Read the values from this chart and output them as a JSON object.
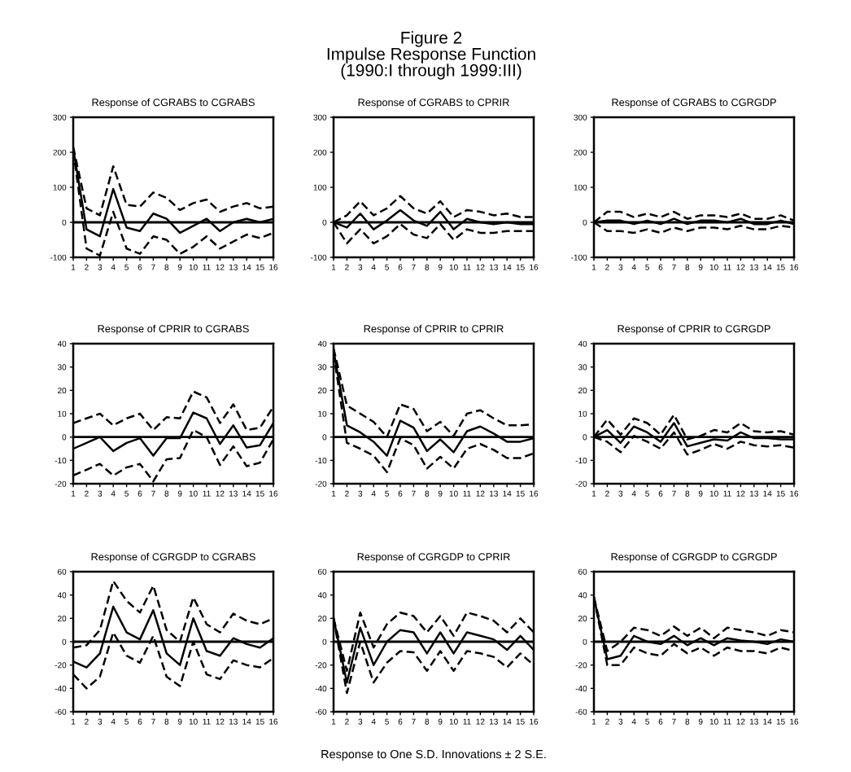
{
  "chart_data": [
    {
      "type": "line",
      "title": "Response of CGRABS to CGRABS",
      "annotations": [
        "Figure 2",
        "Impulse Response Function",
        "(1990:I through 1999:III)"
      ],
      "x": [
        1,
        2,
        3,
        4,
        5,
        6,
        7,
        8,
        9,
        10,
        11,
        12,
        13,
        14,
        15,
        16
      ],
      "xlim": [
        1,
        16
      ],
      "xticks": [
        1,
        2,
        3,
        4,
        5,
        6,
        7,
        8,
        9,
        10,
        11,
        12,
        13,
        14,
        15,
        16
      ],
      "ylim": [
        -100,
        300
      ],
      "yticks": [
        -100,
        0,
        100,
        200,
        300
      ],
      "grid": false,
      "ref_lines": [
        {
          "axis": "y",
          "value": 0,
          "color": "#000000"
        }
      ],
      "series": [
        {
          "color": "#000000",
          "line_style": "solid",
          "values": [
            210,
            -20,
            -40,
            95,
            -15,
            -25,
            25,
            10,
            -30,
            -10,
            10,
            -25,
            0,
            10,
            0,
            10
          ]
        },
        {
          "color": "#000000",
          "line_style": "dashed",
          "values": [
            215,
            40,
            20,
            160,
            50,
            45,
            85,
            70,
            35,
            55,
            65,
            30,
            45,
            55,
            40,
            45
          ]
        },
        {
          "color": "#000000",
          "line_style": "dashed",
          "values": [
            205,
            -75,
            -95,
            30,
            -75,
            -90,
            -40,
            -50,
            -90,
            -70,
            -40,
            -75,
            -55,
            -35,
            -45,
            -30
          ]
        }
      ]
    },
    {
      "type": "line",
      "title": "Response of CGRABS to CPRIR",
      "x": [
        1,
        2,
        3,
        4,
        5,
        6,
        7,
        8,
        9,
        10,
        11,
        12,
        13,
        14,
        15,
        16
      ],
      "xlim": [
        1,
        16
      ],
      "xticks": [
        1,
        2,
        3,
        4,
        5,
        6,
        7,
        8,
        9,
        10,
        11,
        12,
        13,
        14,
        15,
        16
      ],
      "ylim": [
        -100,
        300
      ],
      "yticks": [
        -100,
        0,
        100,
        200,
        300
      ],
      "grid": false,
      "ref_lines": [
        {
          "axis": "y",
          "value": 0,
          "color": "#000000"
        }
      ],
      "series": [
        {
          "color": "#000000",
          "line_style": "solid",
          "values": [
            0,
            -15,
            25,
            -20,
            5,
            35,
            5,
            -10,
            30,
            -20,
            10,
            0,
            -5,
            0,
            -5,
            -5
          ]
        },
        {
          "color": "#000000",
          "line_style": "dashed",
          "values": [
            0,
            20,
            60,
            20,
            40,
            75,
            40,
            25,
            60,
            15,
            35,
            30,
            20,
            25,
            15,
            15
          ]
        },
        {
          "color": "#000000",
          "line_style": "dashed",
          "values": [
            0,
            -60,
            -20,
            -60,
            -40,
            -5,
            -35,
            -45,
            -5,
            -50,
            -20,
            -30,
            -30,
            -25,
            -25,
            -25
          ]
        }
      ]
    },
    {
      "type": "line",
      "title": "Response of CGRABS to CGRGDP",
      "x": [
        1,
        2,
        3,
        4,
        5,
        6,
        7,
        8,
        9,
        10,
        11,
        12,
        13,
        14,
        15,
        16
      ],
      "xlim": [
        1,
        16
      ],
      "xticks": [
        1,
        2,
        3,
        4,
        5,
        6,
        7,
        8,
        9,
        10,
        11,
        12,
        13,
        14,
        15,
        16
      ],
      "ylim": [
        -100,
        300
      ],
      "yticks": [
        -100,
        0,
        100,
        200,
        300
      ],
      "grid": false,
      "ref_lines": [
        {
          "axis": "y",
          "value": 0,
          "color": "#000000"
        }
      ],
      "series": [
        {
          "color": "#000000",
          "line_style": "solid",
          "values": [
            0,
            5,
            5,
            -5,
            5,
            -5,
            10,
            -5,
            5,
            5,
            0,
            10,
            -5,
            -5,
            5,
            -5
          ]
        },
        {
          "color": "#000000",
          "line_style": "dashed",
          "values": [
            0,
            30,
            30,
            15,
            25,
            15,
            30,
            10,
            20,
            20,
            15,
            25,
            10,
            10,
            20,
            5
          ]
        },
        {
          "color": "#000000",
          "line_style": "dashed",
          "values": [
            0,
            -25,
            -25,
            -30,
            -20,
            -30,
            -15,
            -25,
            -15,
            -15,
            -20,
            -10,
            -20,
            -20,
            -10,
            -15
          ]
        }
      ]
    },
    {
      "type": "line",
      "title": "Response of CPRIR to CGRABS",
      "x": [
        1,
        2,
        3,
        4,
        5,
        6,
        7,
        8,
        9,
        10,
        11,
        12,
        13,
        14,
        15,
        16
      ],
      "xlim": [
        1,
        16
      ],
      "xticks": [
        1,
        2,
        3,
        4,
        5,
        6,
        7,
        8,
        9,
        10,
        11,
        12,
        13,
        14,
        15,
        16
      ],
      "ylim": [
        -20,
        40
      ],
      "yticks": [
        -20,
        -10,
        0,
        10,
        20,
        30,
        40
      ],
      "grid": false,
      "ref_lines": [
        {
          "axis": "y",
          "value": 0,
          "color": "#000000"
        }
      ],
      "series": [
        {
          "color": "#000000",
          "line_style": "solid",
          "values": [
            -5,
            -2.5,
            0,
            -6,
            -2.5,
            -0.5,
            -8,
            -0.5,
            -0.5,
            10.5,
            8,
            -3,
            5,
            -4.5,
            -3.5,
            6
          ]
        },
        {
          "color": "#000000",
          "line_style": "dashed",
          "values": [
            6,
            8,
            10,
            5,
            8,
            10,
            3,
            8.5,
            8,
            19.5,
            17,
            6,
            14,
            3,
            4,
            13
          ]
        },
        {
          "color": "#000000",
          "line_style": "dashed",
          "values": [
            -16.5,
            -14,
            -11.5,
            -16.5,
            -13,
            -11.5,
            -19,
            -9.5,
            -9,
            3,
            0,
            -12,
            -4,
            -12.5,
            -11,
            -1
          ]
        }
      ]
    },
    {
      "type": "line",
      "title": "Response of CPRIR to CPRIR",
      "x": [
        1,
        2,
        3,
        4,
        5,
        6,
        7,
        8,
        9,
        10,
        11,
        12,
        13,
        14,
        15,
        16
      ],
      "xlim": [
        1,
        16
      ],
      "xticks": [
        1,
        2,
        3,
        4,
        5,
        6,
        7,
        8,
        9,
        10,
        11,
        12,
        13,
        14,
        15,
        16
      ],
      "ylim": [
        -20,
        40
      ],
      "yticks": [
        -20,
        -10,
        0,
        10,
        20,
        30,
        40
      ],
      "grid": false,
      "ref_lines": [
        {
          "axis": "y",
          "value": 0,
          "color": "#000000"
        }
      ],
      "series": [
        {
          "color": "#000000",
          "line_style": "solid",
          "values": [
            37,
            5,
            2,
            -2,
            -8,
            7,
            4,
            -6,
            -1,
            -6.5,
            2.5,
            4.5,
            1.5,
            -2,
            -2,
            -0.5
          ]
        },
        {
          "color": "#000000",
          "line_style": "dashed",
          "values": [
            38,
            13.5,
            10,
            6.5,
            0,
            14,
            12,
            2.5,
            6.5,
            0.5,
            10,
            11.5,
            8,
            5,
            5,
            5.5
          ]
        },
        {
          "color": "#000000",
          "line_style": "dashed",
          "values": [
            36,
            -2.5,
            -5,
            -8,
            -15,
            -0.5,
            -3.5,
            -13.5,
            -8.5,
            -13.5,
            -5,
            -3,
            -5.5,
            -9,
            -9,
            -7
          ]
        }
      ]
    },
    {
      "type": "line",
      "title": "Response of CPRIR to CGRGDP",
      "x": [
        1,
        2,
        3,
        4,
        5,
        6,
        7,
        8,
        9,
        10,
        11,
        12,
        13,
        14,
        15,
        16
      ],
      "xlim": [
        1,
        16
      ],
      "xticks": [
        1,
        2,
        3,
        4,
        5,
        6,
        7,
        8,
        9,
        10,
        11,
        12,
        13,
        14,
        15,
        16
      ],
      "ylim": [
        -20,
        40
      ],
      "yticks": [
        -20,
        -10,
        0,
        10,
        20,
        30,
        40
      ],
      "grid": false,
      "ref_lines": [
        {
          "axis": "y",
          "value": 0,
          "color": "#000000"
        }
      ],
      "series": [
        {
          "color": "#000000",
          "line_style": "solid",
          "values": [
            0,
            3,
            -2.5,
            4.5,
            2,
            -2,
            6,
            -4,
            -2.5,
            -1,
            -1.5,
            2,
            -0.5,
            -0.5,
            -1,
            -1
          ]
        },
        {
          "color": "#000000",
          "line_style": "dashed",
          "values": [
            0,
            7.5,
            1,
            8,
            6,
            1,
            9.5,
            -1,
            0.5,
            3,
            2,
            6,
            2.5,
            2,
            2.5,
            1
          ]
        },
        {
          "color": "#000000",
          "line_style": "dashed",
          "values": [
            0,
            -2,
            -6.5,
            0.5,
            -2,
            -5,
            2,
            -7.5,
            -5.5,
            -3,
            -5,
            -2,
            -3.5,
            -4,
            -3.5,
            -4.5
          ]
        }
      ]
    },
    {
      "type": "line",
      "title": "Response of CGRGDP to CGRABS",
      "x": [
        1,
        2,
        3,
        4,
        5,
        6,
        7,
        8,
        9,
        10,
        11,
        12,
        13,
        14,
        15,
        16
      ],
      "xlim": [
        1,
        16
      ],
      "xticks": [
        1,
        2,
        3,
        4,
        5,
        6,
        7,
        8,
        9,
        10,
        11,
        12,
        13,
        14,
        15,
        16
      ],
      "ylim": [
        -60,
        60
      ],
      "yticks": [
        -60,
        -40,
        -20,
        0,
        20,
        40,
        60
      ],
      "grid": false,
      "ref_lines": [
        {
          "axis": "y",
          "value": 0,
          "color": "#000000"
        }
      ],
      "series": [
        {
          "color": "#000000",
          "line_style": "solid",
          "values": [
            -17,
            -22,
            -10,
            30,
            8,
            2,
            27,
            -10,
            -20,
            20,
            -8,
            -12,
            3,
            -2,
            -5,
            3
          ]
        },
        {
          "color": "#000000",
          "line_style": "dashed",
          "values": [
            -5,
            -3,
            10,
            52,
            35,
            25,
            48,
            10,
            0,
            38,
            15,
            8,
            24,
            18,
            15,
            20
          ]
        },
        {
          "color": "#000000",
          "line_style": "dashed",
          "values": [
            -28,
            -40,
            -30,
            8,
            -12,
            -18,
            5,
            -30,
            -38,
            0,
            -28,
            -32,
            -16,
            -20,
            -22,
            -14
          ]
        }
      ]
    },
    {
      "type": "line",
      "title": "Response of CGRGDP to CPRIR",
      "annotations": [
        "Response to One S.D. Innovations ± 2 S.E."
      ],
      "x": [
        1,
        2,
        3,
        4,
        5,
        6,
        7,
        8,
        9,
        10,
        11,
        12,
        13,
        14,
        15,
        16
      ],
      "xlim": [
        1,
        16
      ],
      "xticks": [
        1,
        2,
        3,
        4,
        5,
        6,
        7,
        8,
        9,
        10,
        11,
        12,
        13,
        14,
        15,
        16
      ],
      "ylim": [
        -60,
        60
      ],
      "yticks": [
        -60,
        -40,
        -20,
        0,
        20,
        40,
        60
      ],
      "grid": false,
      "ref_lines": [
        {
          "axis": "y",
          "value": 0,
          "color": "#000000"
        }
      ],
      "series": [
        {
          "color": "#000000",
          "line_style": "solid",
          "values": [
            20,
            -35,
            12,
            -20,
            0,
            10,
            8,
            -10,
            8,
            -10,
            8,
            5,
            2,
            -7,
            5,
            -7
          ]
        },
        {
          "color": "#000000",
          "line_style": "dashed",
          "values": [
            20,
            -25,
            25,
            -5,
            15,
            25,
            22,
            8,
            22,
            5,
            25,
            22,
            18,
            8,
            20,
            8
          ]
        },
        {
          "color": "#000000",
          "line_style": "dashed",
          "values": [
            20,
            -44,
            0,
            -35,
            -18,
            -8,
            -9,
            -25,
            -8,
            -25,
            -8,
            -10,
            -13,
            -22,
            -10,
            -20
          ]
        }
      ]
    },
    {
      "type": "line",
      "title": "Response of CGRGDP to CGRGDP",
      "x": [
        1,
        2,
        3,
        4,
        5,
        6,
        7,
        8,
        9,
        10,
        11,
        12,
        13,
        14,
        15,
        16
      ],
      "xlim": [
        1,
        16
      ],
      "xticks": [
        1,
        2,
        3,
        4,
        5,
        6,
        7,
        8,
        9,
        10,
        11,
        12,
        13,
        14,
        15,
        16
      ],
      "ylim": [
        -60,
        60
      ],
      "yticks": [
        -60,
        -40,
        -20,
        0,
        20,
        40,
        60
      ],
      "grid": false,
      "ref_lines": [
        {
          "axis": "y",
          "value": 0,
          "color": "#000000"
        }
      ],
      "series": [
        {
          "color": "#000000",
          "line_style": "solid",
          "values": [
            38,
            -15,
            -12,
            5,
            0,
            -2,
            5,
            -3,
            3,
            -3,
            3,
            1,
            0,
            -2,
            2,
            0
          ]
        },
        {
          "color": "#000000",
          "line_style": "dashed",
          "values": [
            38,
            -8,
            0,
            12,
            10,
            5,
            13,
            5,
            12,
            3,
            12,
            10,
            8,
            5,
            10,
            8
          ]
        },
        {
          "color": "#000000",
          "line_style": "dashed",
          "values": [
            38,
            -20,
            -20,
            -5,
            -10,
            -12,
            -2,
            -10,
            -5,
            -12,
            -5,
            -8,
            -8,
            -10,
            -5,
            -8
          ]
        }
      ]
    }
  ]
}
